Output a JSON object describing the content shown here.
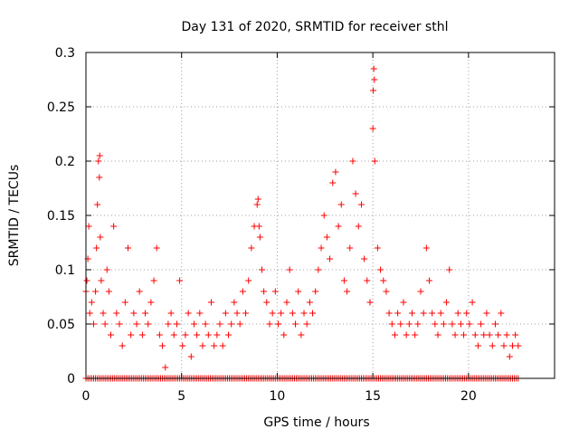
{
  "chart_data": {
    "type": "scatter",
    "title": "Day 131 of 2020, SRMTID for receiver sthl",
    "xlabel": "GPS time / hours",
    "ylabel": "SRMTID / TECUs",
    "xlim": [
      0,
      24.5
    ],
    "ylim": [
      0,
      0.3
    ],
    "xticks": [
      0,
      5,
      10,
      15,
      20
    ],
    "xtick_labels": [
      "0",
      "5",
      "10",
      "15",
      "20"
    ],
    "yticks": [
      0,
      0.05,
      0.1,
      0.15,
      0.2,
      0.25,
      0.3
    ],
    "ytick_labels": [
      "0",
      "0.05",
      "0.1",
      "0.15",
      "0.2",
      "0.25",
      "0.3"
    ],
    "grid": true,
    "legend": "none",
    "marker": "+",
    "marker_color": "#ff0000",
    "data_range_x": [
      0,
      22.6
    ],
    "series": [
      {
        "name": "SRMTID",
        "x": [
          0.0,
          0.05,
          0.1,
          0.15,
          0.2,
          0.3,
          0.4,
          0.5,
          0.55,
          0.6,
          0.65,
          0.7,
          0.72,
          0.75,
          0.8,
          0.9,
          1.0,
          1.1,
          1.2,
          1.3,
          1.45,
          1.6,
          1.75,
          1.9,
          2.05,
          2.2,
          2.35,
          2.5,
          2.65,
          2.8,
          2.95,
          3.1,
          3.25,
          3.4,
          3.55,
          3.7,
          3.85,
          4.0,
          4.15,
          4.3,
          4.45,
          4.6,
          4.75,
          4.9,
          5.05,
          5.2,
          5.35,
          5.5,
          5.65,
          5.8,
          5.95,
          6.1,
          6.25,
          6.4,
          6.55,
          6.7,
          6.85,
          7.0,
          7.15,
          7.3,
          7.45,
          7.6,
          7.75,
          7.9,
          8.05,
          8.2,
          8.35,
          8.5,
          8.65,
          8.8,
          8.95,
          9.0,
          9.05,
          9.1,
          9.2,
          9.3,
          9.45,
          9.6,
          9.75,
          9.9,
          10.05,
          10.2,
          10.35,
          10.5,
          10.65,
          10.8,
          10.95,
          11.1,
          11.25,
          11.4,
          11.55,
          11.7,
          11.85,
          12.0,
          12.15,
          12.3,
          12.45,
          12.6,
          12.75,
          12.9,
          13.05,
          13.2,
          13.35,
          13.5,
          13.65,
          13.8,
          13.95,
          14.1,
          14.25,
          14.4,
          14.55,
          14.7,
          14.85,
          15.0,
          15.02,
          15.05,
          15.08,
          15.1,
          15.25,
          15.4,
          15.55,
          15.7,
          15.85,
          16.0,
          16.15,
          16.3,
          16.45,
          16.6,
          16.75,
          16.9,
          17.05,
          17.2,
          17.35,
          17.5,
          17.65,
          17.8,
          17.95,
          18.1,
          18.25,
          18.4,
          18.55,
          18.7,
          18.85,
          19.0,
          19.15,
          19.3,
          19.45,
          19.6,
          19.75,
          19.9,
          20.05,
          20.2,
          20.35,
          20.5,
          20.65,
          20.8,
          20.95,
          21.1,
          21.25,
          21.4,
          21.55,
          21.7,
          21.85,
          22.0,
          22.15,
          22.3,
          22.45,
          22.6
        ],
        "y": [
          0.08,
          0.09,
          0.11,
          0.14,
          0.06,
          0.07,
          0.05,
          0.08,
          0.12,
          0.16,
          0.2,
          0.185,
          0.205,
          0.13,
          0.09,
          0.06,
          0.05,
          0.1,
          0.08,
          0.04,
          0.14,
          0.06,
          0.05,
          0.03,
          0.07,
          0.12,
          0.04,
          0.06,
          0.05,
          0.08,
          0.04,
          0.06,
          0.05,
          0.07,
          0.09,
          0.12,
          0.04,
          0.03,
          0.01,
          0.05,
          0.06,
          0.04,
          0.05,
          0.09,
          0.03,
          0.04,
          0.06,
          0.02,
          0.05,
          0.04,
          0.06,
          0.03,
          0.05,
          0.04,
          0.07,
          0.03,
          0.04,
          0.05,
          0.03,
          0.06,
          0.04,
          0.05,
          0.07,
          0.06,
          0.05,
          0.08,
          0.06,
          0.09,
          0.12,
          0.14,
          0.16,
          0.165,
          0.14,
          0.13,
          0.1,
          0.08,
          0.07,
          0.05,
          0.06,
          0.08,
          0.05,
          0.06,
          0.04,
          0.07,
          0.1,
          0.06,
          0.05,
          0.08,
          0.04,
          0.06,
          0.05,
          0.07,
          0.06,
          0.08,
          0.1,
          0.12,
          0.15,
          0.13,
          0.11,
          0.18,
          0.19,
          0.14,
          0.16,
          0.09,
          0.08,
          0.12,
          0.2,
          0.17,
          0.14,
          0.16,
          0.11,
          0.09,
          0.07,
          0.23,
          0.265,
          0.285,
          0.275,
          0.2,
          0.12,
          0.1,
          0.09,
          0.08,
          0.06,
          0.05,
          0.04,
          0.06,
          0.05,
          0.07,
          0.04,
          0.05,
          0.06,
          0.04,
          0.05,
          0.08,
          0.06,
          0.12,
          0.09,
          0.06,
          0.05,
          0.04,
          0.06,
          0.05,
          0.07,
          0.1,
          0.05,
          0.04,
          0.06,
          0.05,
          0.04,
          0.06,
          0.05,
          0.07,
          0.04,
          0.03,
          0.05,
          0.04,
          0.06,
          0.04,
          0.03,
          0.05,
          0.04,
          0.06,
          0.03,
          0.04,
          0.02,
          0.03,
          0.04,
          0.03
        ]
      }
    ]
  }
}
